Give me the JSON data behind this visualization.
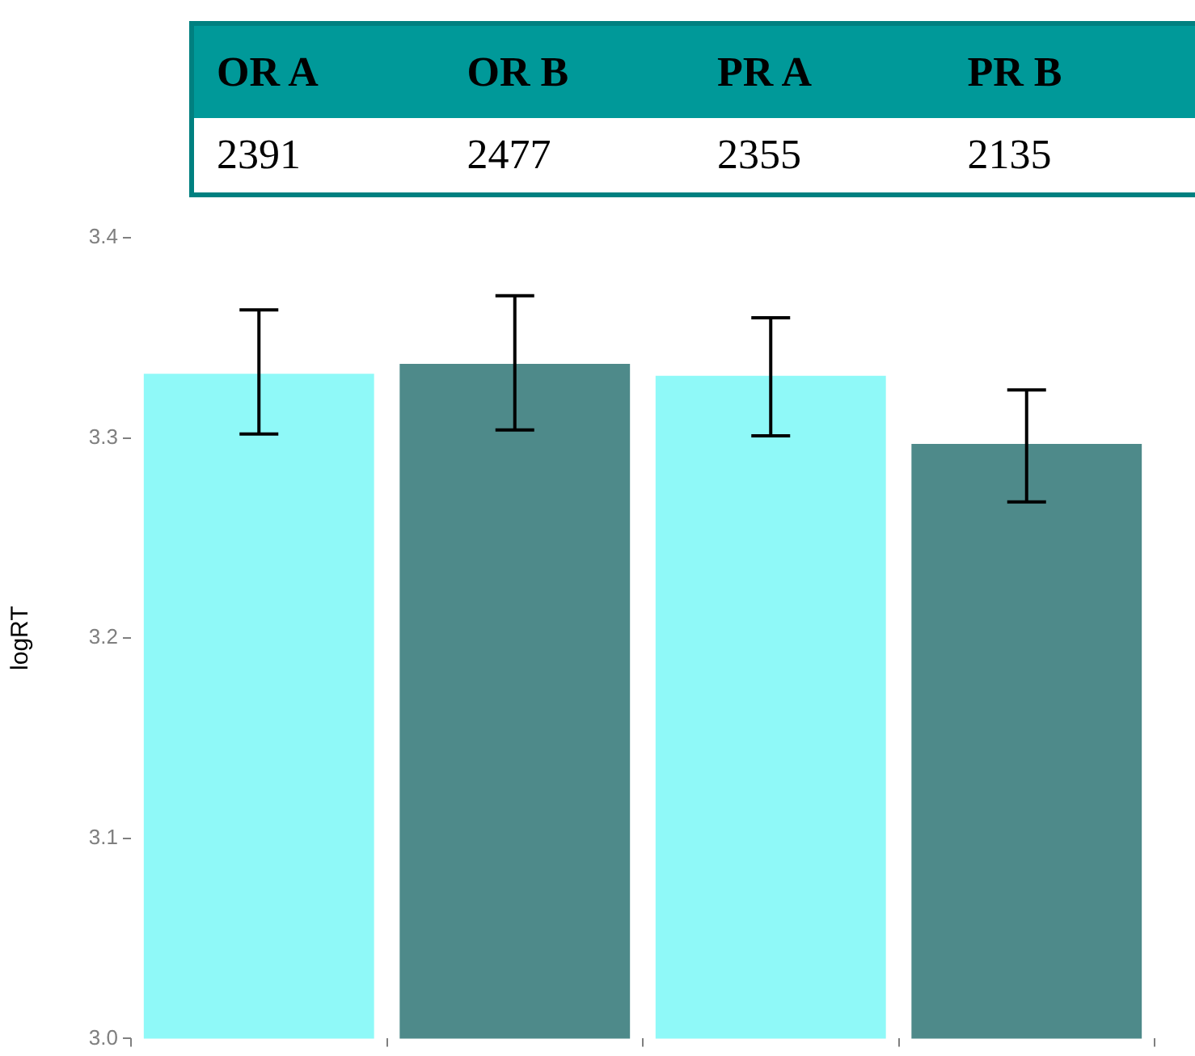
{
  "chart_data": [
    {
      "type": "other",
      "categories": [
        "OR A",
        "OR B",
        "PR A",
        "PR B"
      ],
      "values": [
        2391,
        2477,
        2355,
        2135
      ],
      "data_labels": true
    },
    {
      "type": "bar",
      "ylabel": "logRT",
      "categories": [
        null,
        null,
        null,
        null
      ],
      "values": [
        3.332,
        3.337,
        3.331,
        3.297
      ],
      "colors": [
        "#8ff9f8",
        "#4e8a8a",
        "#8ff9f8",
        "#4e8a8a"
      ],
      "errors": [
        [
          3.302,
          3.364
        ],
        [
          3.304,
          3.371
        ],
        [
          3.301,
          3.36
        ],
        [
          3.268,
          3.324
        ]
      ],
      "ylim": [
        3.0,
        3.4
      ],
      "yticks": [
        {
          "value": 3.0,
          "label": "3.0"
        },
        3.1,
        3.2,
        3.3,
        3.4
      ],
      "grid": false
    }
  ]
}
